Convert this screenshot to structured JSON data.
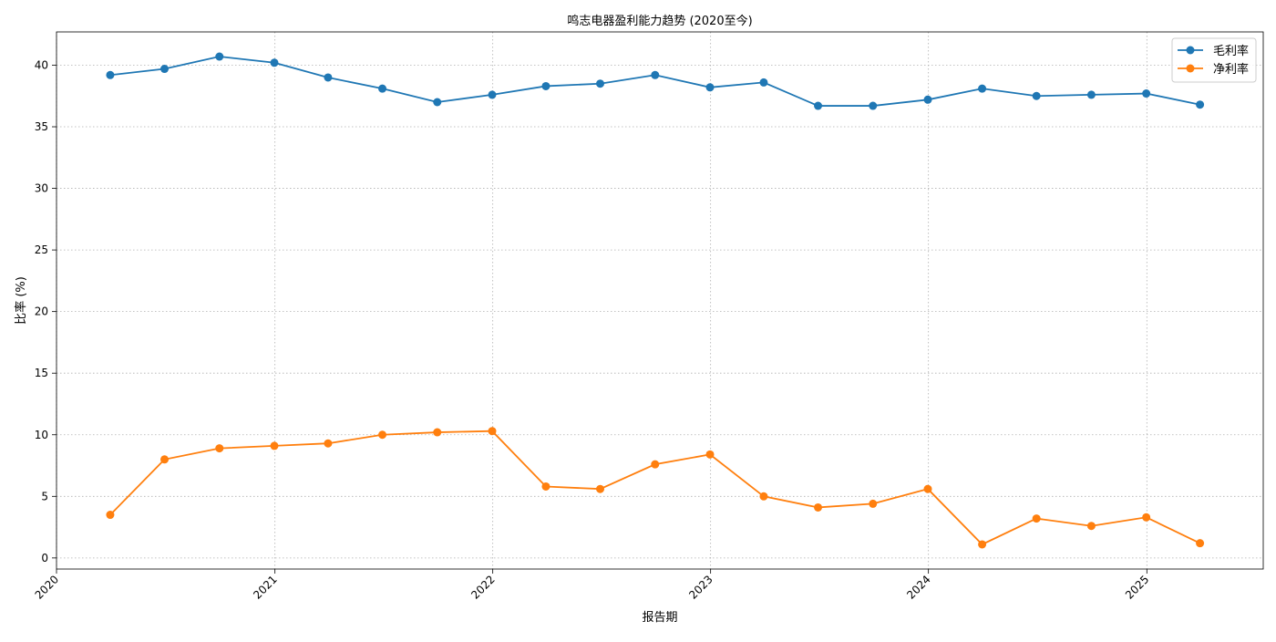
{
  "chart_data": {
    "type": "line",
    "title": "鸣志电器盈利能力趋势 (2020至今)",
    "xlabel": "报告期",
    "ylabel": "比率 (%)",
    "xticks": [
      "2020",
      "2021",
      "2022",
      "2023",
      "2024",
      "2025"
    ],
    "yticks": [
      "0",
      "5",
      "10",
      "15",
      "20",
      "25",
      "30",
      "35",
      "40"
    ],
    "xlim": [
      "2020-01-01",
      "2025-07-15"
    ],
    "ylim": [
      -0.9,
      42.7
    ],
    "grid": true,
    "legend": "top-right",
    "x": [
      "2020-03-31",
      "2020-06-30",
      "2020-09-30",
      "2020-12-31",
      "2021-03-31",
      "2021-06-30",
      "2021-09-30",
      "2021-12-31",
      "2022-03-31",
      "2022-06-30",
      "2022-09-30",
      "2022-12-31",
      "2023-03-31",
      "2023-06-30",
      "2023-09-30",
      "2023-12-31",
      "2024-03-31",
      "2024-06-30",
      "2024-09-30",
      "2024-12-31",
      "2025-03-31"
    ],
    "series": [
      {
        "name": "毛利率",
        "color": "#1f77b4",
        "values": [
          39.2,
          39.7,
          40.7,
          40.2,
          39.0,
          38.1,
          37.0,
          37.6,
          38.3,
          38.5,
          39.2,
          38.2,
          38.6,
          36.7,
          36.7,
          37.2,
          38.1,
          37.5,
          37.6,
          37.7,
          36.8
        ]
      },
      {
        "name": "净利率",
        "color": "#ff7f0e",
        "values": [
          3.5,
          8.0,
          8.9,
          9.1,
          9.3,
          10.0,
          10.2,
          10.3,
          5.8,
          5.6,
          7.6,
          8.4,
          5.0,
          4.1,
          4.4,
          5.6,
          1.1,
          3.2,
          2.6,
          3.3,
          1.2
        ]
      }
    ]
  }
}
